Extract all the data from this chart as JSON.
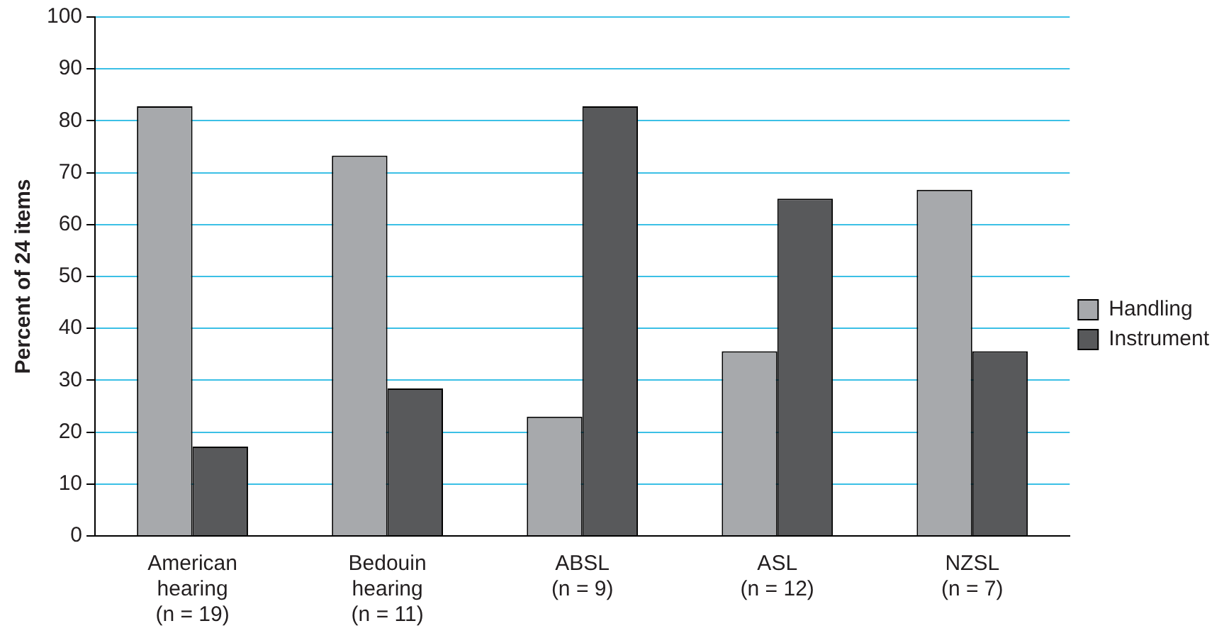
{
  "chart_data": {
    "type": "bar",
    "ylabel": "Percent of 24 items",
    "categories": [
      "American\nhearing\n(n = 19)",
      "Bedouin\nhearing\n(n = 11)",
      "ABSL\n(n = 9)",
      "ASL\n(n = 12)",
      "NZSL\n(n = 7)"
    ],
    "series": [
      {
        "name": "Handling",
        "color": "#a7a9ac",
        "values": [
          82.8,
          73.3,
          23,
          35.6,
          66.7
        ]
      },
      {
        "name": "Instrument",
        "color": "#58595b",
        "values": [
          17.2,
          28.4,
          82.8,
          65,
          35.6
        ]
      }
    ],
    "ylim": [
      0,
      100
    ],
    "yticks": [
      0,
      10,
      20,
      30,
      40,
      50,
      60,
      70,
      80,
      90,
      100
    ],
    "grid": "y",
    "legend": "right"
  }
}
